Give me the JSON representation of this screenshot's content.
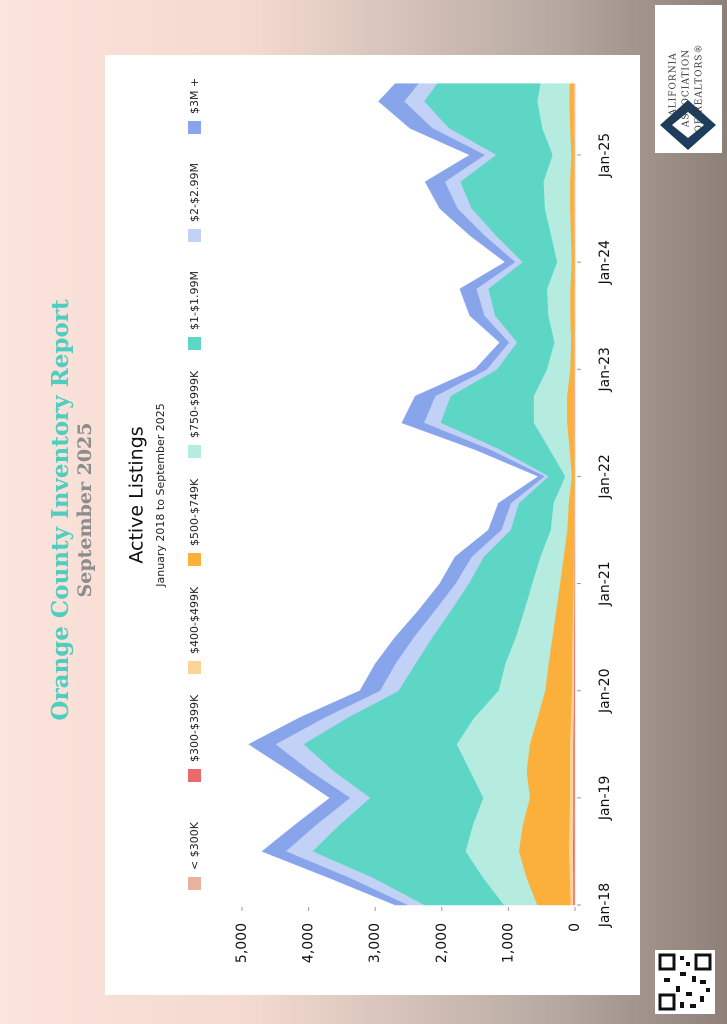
{
  "header": {
    "title": "Orange County Inventory Report",
    "subtitle": "September 2025"
  },
  "logo": [
    "CALIFORNIA",
    "ASSOCIATION",
    "OF REALTORS®"
  ],
  "chart_data": {
    "type": "stacked_area",
    "title": "Active Listings",
    "subtitle": "January 2018 to September 2025",
    "x": [
      "2018-01",
      "2018-04",
      "2018-07",
      "2018-10",
      "2019-01",
      "2019-04",
      "2019-07",
      "2019-10",
      "2020-01",
      "2020-04",
      "2020-07",
      "2020-10",
      "2021-01",
      "2021-04",
      "2021-07",
      "2021-10",
      "2022-01",
      "2022-04",
      "2022-07",
      "2022-10",
      "2023-01",
      "2023-04",
      "2023-07",
      "2023-10",
      "2024-01",
      "2024-04",
      "2024-07",
      "2024-10",
      "2025-01",
      "2025-04",
      "2025-07",
      "2025-09"
    ],
    "series": [
      {
        "name": "< $300K",
        "color": "#e9b29c",
        "values": [
          10,
          10,
          10,
          10,
          10,
          10,
          10,
          8,
          8,
          8,
          6,
          6,
          5,
          5,
          4,
          4,
          3,
          3,
          4,
          4,
          3,
          3,
          3,
          3,
          3,
          3,
          3,
          3,
          3,
          3,
          3,
          3
        ]
      },
      {
        "name": "$300-$399K",
        "color": "#e96a6a",
        "values": [
          20,
          20,
          25,
          20,
          20,
          20,
          20,
          15,
          12,
          12,
          10,
          8,
          6,
          5,
          4,
          4,
          3,
          3,
          5,
          5,
          3,
          3,
          3,
          3,
          3,
          3,
          3,
          3,
          3,
          3,
          3,
          3
        ]
      },
      {
        "name": "$400-$499K",
        "color": "#fcd49a",
        "values": [
          40,
          50,
          60,
          55,
          50,
          50,
          50,
          40,
          30,
          30,
          25,
          20,
          15,
          12,
          10,
          8,
          5,
          8,
          12,
          12,
          8,
          6,
          8,
          8,
          6,
          8,
          10,
          10,
          8,
          10,
          12,
          12
        ]
      },
      {
        "name": "$500-$749K",
        "color": "#fbb03b",
        "values": [
          500,
          650,
          750,
          700,
          600,
          650,
          600,
          500,
          400,
          350,
          300,
          250,
          200,
          150,
          100,
          80,
          40,
          70,
          100,
          100,
          60,
          50,
          60,
          60,
          40,
          50,
          60,
          60,
          45,
          60,
          70,
          65
        ]
      },
      {
        "name": "$750-$999K",
        "color": "#b6ebdf",
        "values": [
          500,
          650,
          800,
          750,
          700,
          850,
          1100,
          950,
          700,
          650,
          550,
          480,
          420,
          350,
          250,
          230,
          100,
          300,
          500,
          500,
          350,
          250,
          330,
          350,
          220,
          300,
          380,
          400,
          280,
          420,
          480,
          440
        ]
      },
      {
        "name": "$1-$1.99M",
        "color": "#5ed6c5",
        "values": [
          1200,
          1650,
          2300,
          2000,
          1700,
          2050,
          2300,
          1900,
          1500,
          1350,
          1250,
          1100,
          950,
          850,
          600,
          520,
          250,
          750,
          1400,
          1250,
          750,
          560,
          800,
          880,
          520,
          830,
          1100,
          1250,
          850,
          1400,
          1700,
          1550
        ]
      },
      {
        "name": "$2-$2.99M",
        "color": "#c2d1f6",
        "values": [
          250,
          350,
          400,
          350,
          300,
          350,
          420,
          350,
          280,
          300,
          280,
          240,
          200,
          180,
          140,
          120,
          60,
          150,
          250,
          230,
          150,
          120,
          160,
          180,
          110,
          170,
          210,
          230,
          170,
          250,
          300,
          280
        ]
      },
      {
        "name": "$3M +",
        "color": "#88a5ec",
        "values": [
          180,
          300,
          355,
          315,
          300,
          300,
          400,
          367,
          300,
          300,
          279,
          246,
          234,
          248,
          192,
          184,
          89,
          216,
          329,
          299,
          176,
          138,
          216,
          246,
          148,
          216,
          264,
          294,
          221,
          334,
          382,
          347
        ]
      }
    ],
    "ylim": [
      0,
      5000
    ],
    "yticks": [
      0,
      {
        "value": 1000,
        "label": "1,000"
      },
      {
        "value": 2000,
        "label": "2,000"
      },
      {
        "value": 3000,
        "label": "3,000"
      },
      {
        "value": 4000,
        "label": "4,000"
      },
      {
        "value": 5000,
        "label": "5,000"
      }
    ],
    "xlim": [
      "2018-01",
      "2025-09"
    ],
    "xticks": [
      {
        "value": "2018-01",
        "label": "Jan-18"
      },
      {
        "value": "2019-01",
        "label": "Jan-19"
      },
      {
        "value": "2020-01",
        "label": "Jan-20"
      },
      {
        "value": "2021-01",
        "label": "Jan-21"
      },
      {
        "value": "2022-01",
        "label": "Jan-22"
      },
      {
        "value": "2023-01",
        "label": "Jan-23"
      },
      {
        "value": "2024-01",
        "label": "Jan-24"
      },
      {
        "value": "2025-01",
        "label": "Jan-25"
      }
    ],
    "grid": false,
    "legend": "top"
  }
}
